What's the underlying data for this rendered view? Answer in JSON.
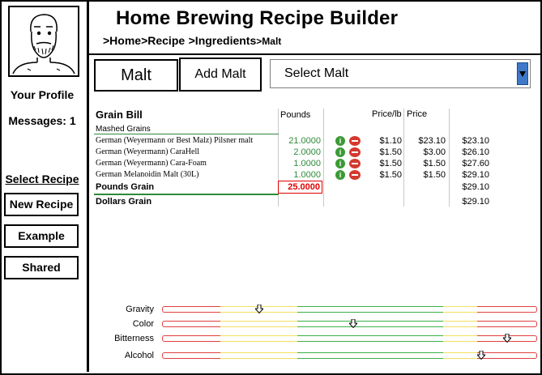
{
  "app": {
    "title": "Home Brewing Recipe Builder",
    "breadcrumb": [
      ">Home",
      ">Recipe",
      ">Ingredients",
      ">Malt"
    ]
  },
  "sidebar": {
    "profile": "Your Profile",
    "messages": "Messages: 1",
    "select_recipe": "Select Recipe",
    "buttons": [
      "New Recipe",
      "Example",
      "Shared"
    ]
  },
  "toolbar": {
    "malt_label": "Malt",
    "add_malt_label": "Add Malt",
    "select_value": "Select Malt"
  },
  "grain_bill": {
    "title": "Grain Bill",
    "headers": {
      "pounds": "Pounds",
      "price_lb": "Price/lb",
      "price": "Price"
    },
    "section": "Mashed Grains",
    "rows": [
      {
        "name": "German (Weyermann or Best Malz) Pilsner malt",
        "pounds": "21.0000",
        "price_lb": "$1.10",
        "price": "$23.10",
        "total": "$23.10"
      },
      {
        "name": "German (Weyermann) CaraHell",
        "pounds": "2.0000",
        "price_lb": "$1.50",
        "price": "$3.00",
        "total": "$26.10"
      },
      {
        "name": "German (Weyermann) Cara-Foam",
        "pounds": "1.0000",
        "price_lb": "$1.50",
        "price": "$1.50",
        "total": "$27.60"
      },
      {
        "name": "German Melanoidin Malt (30L)",
        "pounds": "1.0000",
        "price_lb": "$1.50",
        "price": "$1.50",
        "total": "$29.10"
      }
    ],
    "pounds_grain_label": "Pounds Grain",
    "pounds_grain_value": "25.0000",
    "pounds_grain_total": "$29.10",
    "dollars_grain_label": "Dollars Grain",
    "dollars_grain_total": "$29.10"
  },
  "gauges": [
    {
      "label": "Gravity",
      "level": 0.26
    },
    {
      "label": "Color",
      "level": 0.51
    },
    {
      "label": "Bitterness",
      "level": 0.92
    },
    {
      "label": "Alcohol",
      "level": 0.85
    }
  ],
  "colors": {
    "green_text": "#2e8b3a",
    "red_value": "#e00000",
    "gauge_red": "#e04040",
    "gauge_yellow": "#f0e060",
    "gauge_green": "#3cb04a"
  }
}
